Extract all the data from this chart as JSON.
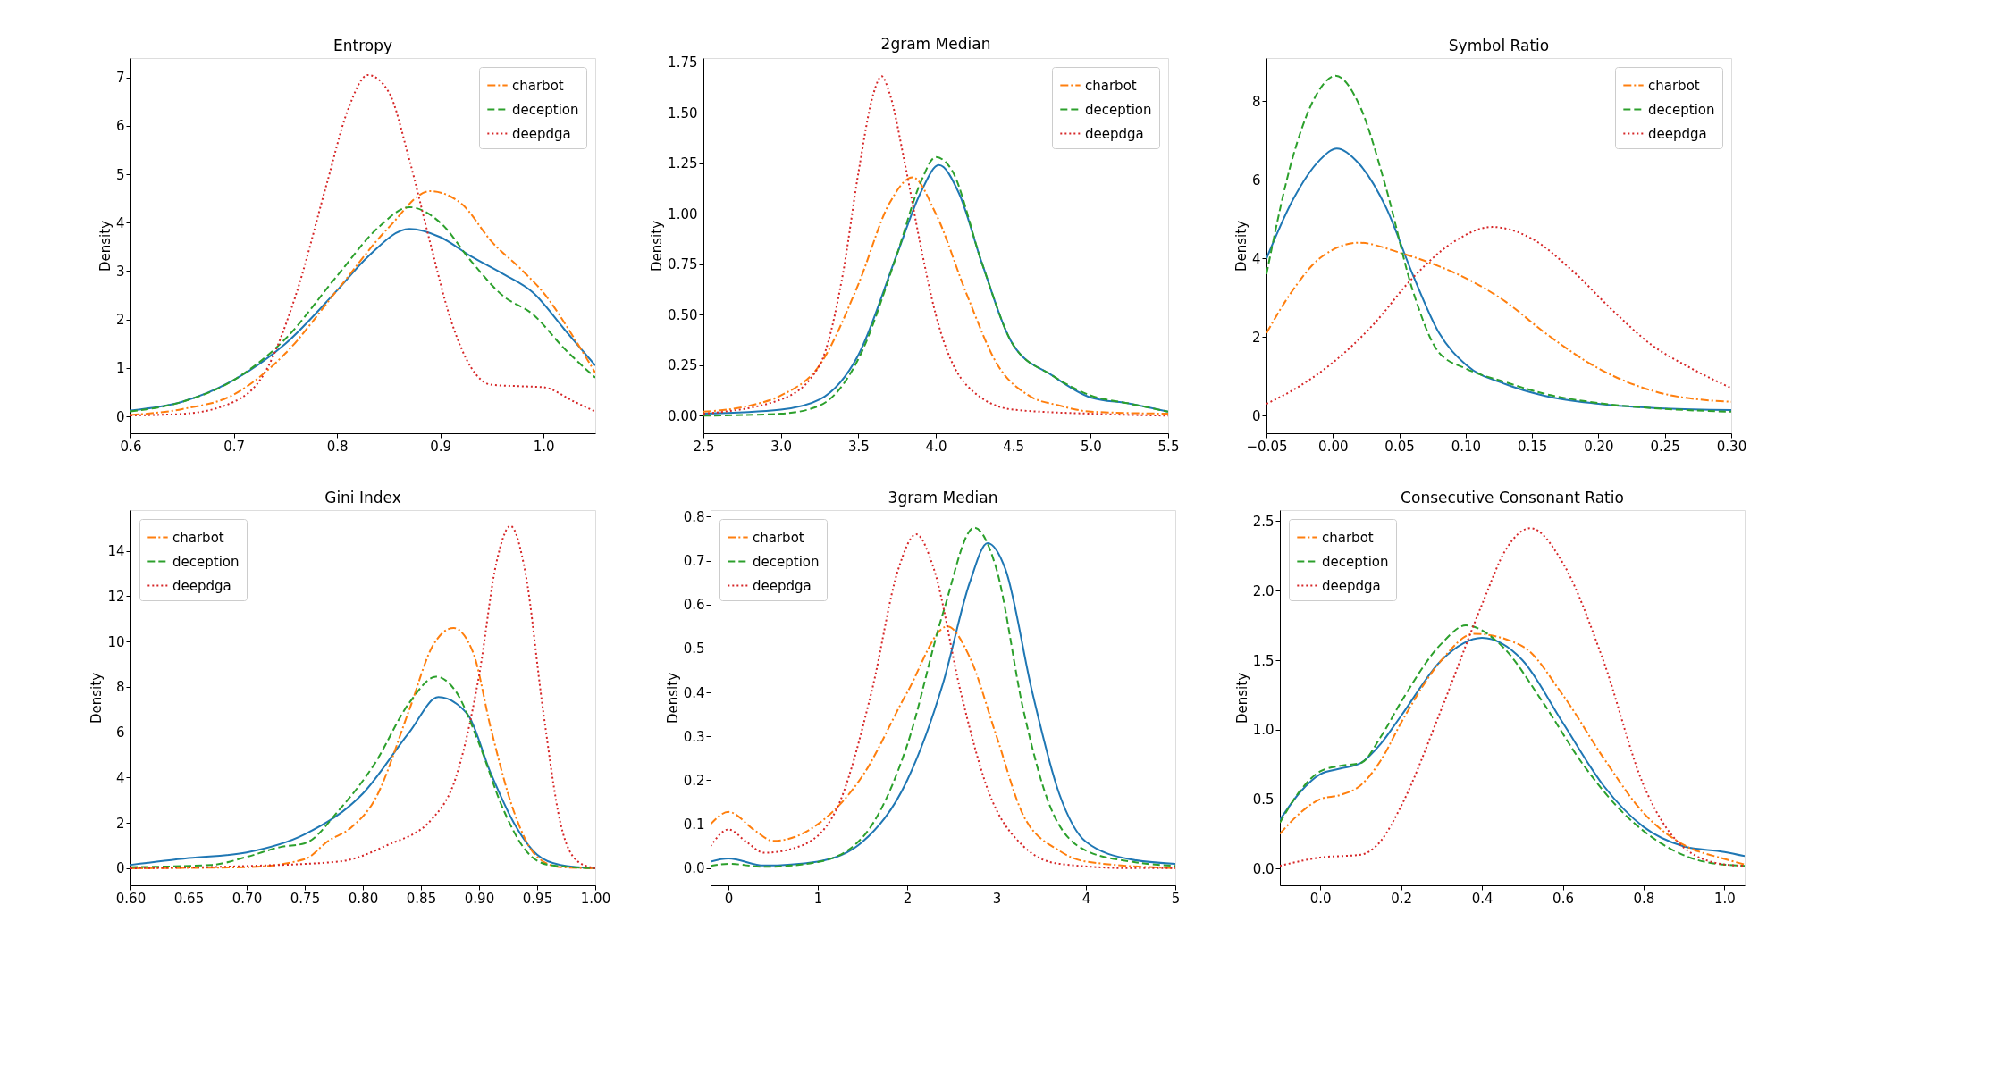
{
  "chart_data": [
    {
      "type": "line",
      "title": "Entropy",
      "ylabel": "Density",
      "legend": "top right",
      "grid": false,
      "xlim": [
        0.6,
        1.05
      ],
      "ylim": [
        -0.35,
        7.4
      ],
      "xticks": [
        0.6,
        0.7,
        0.8,
        0.9,
        {
          "value": 1,
          "label": "1.0"
        }
      ],
      "yticks": [
        0,
        1,
        2,
        3,
        4,
        5,
        6,
        7
      ],
      "series": [
        {
          "color": "#1f77b4",
          "line_style": "solid",
          "x": [
            0.6,
            0.65,
            0.7,
            0.75,
            0.8,
            0.83,
            0.87,
            0.9,
            0.93,
            0.96,
            0.99,
            1.02,
            1.05
          ],
          "values": [
            0.12,
            0.3,
            0.75,
            1.5,
            2.6,
            3.3,
            3.87,
            3.7,
            3.3,
            2.95,
            2.55,
            1.8,
            1.05
          ]
        },
        {
          "name": "charbot",
          "color": "#ff7f0e",
          "line_style": "dashdot",
          "x": [
            0.6,
            0.65,
            0.7,
            0.75,
            0.8,
            0.85,
            0.89,
            0.92,
            0.95,
            0.98,
            1.0,
            1.03,
            1.05
          ],
          "values": [
            0.03,
            0.15,
            0.45,
            1.3,
            2.6,
            3.9,
            4.65,
            4.4,
            3.6,
            3.0,
            2.55,
            1.6,
            0.9
          ]
        },
        {
          "name": "deception",
          "color": "#2ca02c",
          "line_style": "dashed",
          "x": [
            0.6,
            0.65,
            0.7,
            0.75,
            0.8,
            0.84,
            0.87,
            0.9,
            0.93,
            0.96,
            0.99,
            1.02,
            1.05
          ],
          "values": [
            0.1,
            0.3,
            0.75,
            1.6,
            2.9,
            3.9,
            4.32,
            4.0,
            3.2,
            2.5,
            2.1,
            1.4,
            0.8
          ]
        },
        {
          "name": "deepdga",
          "color": "#d62728",
          "line_style": "dotted",
          "x": [
            0.6,
            0.65,
            0.7,
            0.73,
            0.76,
            0.79,
            0.81,
            0.83,
            0.85,
            0.87,
            0.89,
            0.91,
            0.93,
            0.95,
            0.98,
            1.0,
            1.03,
            1.05
          ],
          "values": [
            0.02,
            0.05,
            0.3,
            0.9,
            2.5,
            4.8,
            6.3,
            7.05,
            6.7,
            5.3,
            3.6,
            2.0,
            1.0,
            0.65,
            0.62,
            0.6,
            0.3,
            0.1
          ]
        }
      ]
    },
    {
      "type": "line",
      "title": "2gram Median",
      "ylabel": "Density",
      "legend": "top right",
      "grid": false,
      "xlim": [
        2.5,
        5.5
      ],
      "ylim": [
        -0.087,
        1.77
      ],
      "xticks": [
        2.5,
        {
          "value": 3,
          "label": "3.0"
        },
        3.5,
        {
          "value": 4,
          "label": "4.0"
        },
        4.5,
        {
          "value": 5,
          "label": "5.0"
        },
        5.5
      ],
      "yticks": [
        {
          "value": 0,
          "label": "0.00"
        },
        0.25,
        {
          "value": 0.5,
          "label": "0.50"
        },
        0.75,
        {
          "value": 1,
          "label": "1.00"
        },
        1.25,
        {
          "value": 1.5,
          "label": "1.50"
        },
        1.75
      ],
      "series": [
        {
          "color": "#1f77b4",
          "line_style": "solid",
          "x": [
            2.5,
            3.0,
            3.25,
            3.5,
            3.75,
            3.9,
            4.02,
            4.15,
            4.3,
            4.5,
            4.75,
            5.0,
            5.25,
            5.5
          ],
          "values": [
            0.01,
            0.03,
            0.08,
            0.3,
            0.8,
            1.1,
            1.24,
            1.1,
            0.75,
            0.35,
            0.2,
            0.09,
            0.06,
            0.02
          ]
        },
        {
          "name": "charbot",
          "color": "#ff7f0e",
          "line_style": "dashdot",
          "x": [
            2.5,
            2.8,
            3.0,
            3.25,
            3.5,
            3.7,
            3.85,
            4.0,
            4.2,
            4.4,
            4.6,
            4.8,
            5.0,
            5.5
          ],
          "values": [
            0.02,
            0.05,
            0.1,
            0.25,
            0.65,
            1.05,
            1.18,
            1.0,
            0.6,
            0.25,
            0.1,
            0.05,
            0.02,
            0.01
          ]
        },
        {
          "name": "deception",
          "color": "#2ca02c",
          "line_style": "dashed",
          "x": [
            2.5,
            3.0,
            3.25,
            3.5,
            3.75,
            3.9,
            4.0,
            4.1,
            4.3,
            4.5,
            4.75,
            5.0,
            5.25,
            5.5
          ],
          "values": [
            0.0,
            0.01,
            0.05,
            0.28,
            0.8,
            1.15,
            1.28,
            1.22,
            0.75,
            0.35,
            0.2,
            0.1,
            0.06,
            0.02
          ]
        },
        {
          "name": "deepdga",
          "color": "#d62728",
          "line_style": "dotted",
          "x": [
            2.5,
            3.0,
            3.25,
            3.4,
            3.5,
            3.6,
            3.65,
            3.7,
            3.8,
            3.9,
            4.0,
            4.2,
            4.5,
            5.0,
            5.5
          ],
          "values": [
            0.01,
            0.08,
            0.25,
            0.7,
            1.2,
            1.6,
            1.68,
            1.6,
            1.25,
            0.85,
            0.5,
            0.15,
            0.03,
            0.01,
            0.0
          ]
        }
      ]
    },
    {
      "type": "line",
      "title": "Symbol Ratio",
      "ylabel": "Density",
      "legend": "top right",
      "grid": false,
      "xlim": [
        -0.05,
        0.3
      ],
      "ylim": [
        -0.45,
        9.1
      ],
      "xticks": [
        {
          "value": -0.05,
          "label": "−0.05"
        },
        {
          "value": 0,
          "label": "0.00"
        },
        0.05,
        {
          "value": 0.1,
          "label": "0.10"
        },
        0.15,
        {
          "value": 0.2,
          "label": "0.20"
        },
        0.25,
        {
          "value": 0.3,
          "label": "0.30"
        }
      ],
      "yticks": [
        0,
        2,
        4,
        6,
        8
      ],
      "series": [
        {
          "color": "#1f77b4",
          "line_style": "solid",
          "x": [
            -0.05,
            -0.03,
            -0.01,
            0.003,
            0.02,
            0.04,
            0.06,
            0.08,
            0.1,
            0.13,
            0.16,
            0.2,
            0.25,
            0.3
          ],
          "values": [
            4.0,
            5.5,
            6.5,
            6.8,
            6.4,
            5.3,
            3.6,
            2.1,
            1.3,
            0.8,
            0.5,
            0.3,
            0.18,
            0.14
          ]
        },
        {
          "name": "charbot",
          "color": "#ff7f0e",
          "line_style": "dashdot",
          "x": [
            -0.05,
            -0.03,
            -0.01,
            0.02,
            0.05,
            0.08,
            0.1,
            0.13,
            0.16,
            0.2,
            0.25,
            0.3
          ],
          "values": [
            2.1,
            3.2,
            4.0,
            4.4,
            4.15,
            3.8,
            3.5,
            2.9,
            2.1,
            1.2,
            0.55,
            0.35
          ]
        },
        {
          "name": "deception",
          "color": "#2ca02c",
          "line_style": "dashed",
          "x": [
            -0.05,
            -0.03,
            -0.01,
            0.002,
            0.02,
            0.04,
            0.06,
            0.08,
            0.1,
            0.13,
            0.16,
            0.2,
            0.25,
            0.3
          ],
          "values": [
            3.6,
            6.6,
            8.3,
            8.65,
            7.9,
            5.8,
            3.2,
            1.6,
            1.2,
            0.85,
            0.55,
            0.32,
            0.17,
            0.1
          ]
        },
        {
          "name": "deepdga",
          "color": "#d62728",
          "line_style": "dotted",
          "x": [
            -0.05,
            -0.03,
            0.0,
            0.03,
            0.06,
            0.09,
            0.12,
            0.15,
            0.18,
            0.21,
            0.24,
            0.27,
            0.3
          ],
          "values": [
            0.3,
            0.65,
            1.35,
            2.3,
            3.5,
            4.4,
            4.8,
            4.5,
            3.7,
            2.7,
            1.8,
            1.2,
            0.7
          ]
        }
      ]
    },
    {
      "type": "line",
      "title": "Gini Index",
      "ylabel": "Density",
      "legend": "top left",
      "grid": false,
      "xlim": [
        0.6,
        1.0
      ],
      "ylim": [
        -0.75,
        15.8
      ],
      "xticks": [
        {
          "value": 0.6,
          "label": "0.60"
        },
        0.65,
        {
          "value": 0.7,
          "label": "0.70"
        },
        0.75,
        {
          "value": 0.8,
          "label": "0.80"
        },
        0.85,
        {
          "value": 0.9,
          "label": "0.90"
        },
        0.95,
        {
          "value": 1,
          "label": "1.00"
        }
      ],
      "yticks": [
        0,
        2,
        4,
        6,
        8,
        10,
        12,
        14
      ],
      "series": [
        {
          "color": "#1f77b4",
          "line_style": "solid",
          "x": [
            0.6,
            0.65,
            0.7,
            0.75,
            0.8,
            0.84,
            0.865,
            0.89,
            0.91,
            0.93,
            0.95,
            0.97,
            1.0
          ],
          "values": [
            0.15,
            0.45,
            0.7,
            1.5,
            3.3,
            6.0,
            7.55,
            6.8,
            4.2,
            2.0,
            0.6,
            0.15,
            0.0
          ]
        },
        {
          "name": "charbot",
          "color": "#ff7f0e",
          "line_style": "dashdot",
          "x": [
            0.6,
            0.7,
            0.75,
            0.77,
            0.79,
            0.81,
            0.84,
            0.86,
            0.878,
            0.895,
            0.91,
            0.93,
            0.95,
            0.97,
            1.0
          ],
          "values": [
            0.0,
            0.05,
            0.4,
            1.2,
            1.8,
            3.0,
            7.0,
            9.8,
            10.6,
            9.5,
            6.2,
            2.5,
            0.5,
            0.05,
            0.0
          ]
        },
        {
          "name": "deception",
          "color": "#2ca02c",
          "line_style": "dashed",
          "x": [
            0.6,
            0.67,
            0.7,
            0.73,
            0.75,
            0.78,
            0.81,
            0.84,
            0.863,
            0.88,
            0.9,
            0.92,
            0.94,
            0.96,
            1.0
          ],
          "values": [
            0.05,
            0.15,
            0.5,
            0.95,
            1.1,
            2.6,
            4.6,
            7.3,
            8.45,
            7.8,
            5.5,
            2.7,
            0.8,
            0.15,
            0.0
          ]
        },
        {
          "name": "deepdga",
          "color": "#d62728",
          "line_style": "dotted",
          "x": [
            0.6,
            0.7,
            0.78,
            0.82,
            0.86,
            0.88,
            0.9,
            0.915,
            0.927,
            0.94,
            0.955,
            0.97,
            0.985,
            1.0
          ],
          "values": [
            0.0,
            0.1,
            0.3,
            1.0,
            2.2,
            4.0,
            8.5,
            13.5,
            15.1,
            13.0,
            7.0,
            2.0,
            0.3,
            0.0
          ]
        }
      ]
    },
    {
      "type": "line",
      "title": "3gram Median",
      "ylabel": "Density",
      "legend": "top left",
      "grid": false,
      "xlim": [
        -0.2,
        5
      ],
      "ylim": [
        -0.039,
        0.815
      ],
      "xticks": [
        0,
        1,
        2,
        3,
        4,
        5
      ],
      "yticks": [
        {
          "value": 0,
          "label": "0.0"
        },
        0.1,
        0.2,
        0.3,
        0.4,
        0.5,
        0.6,
        0.7,
        0.8
      ],
      "series": [
        {
          "color": "#1f77b4",
          "line_style": "solid",
          "x": [
            -0.2,
            0.0,
            0.4,
            1.0,
            1.5,
            2.0,
            2.4,
            2.7,
            2.9,
            3.1,
            3.4,
            3.7,
            4.0,
            4.5,
            5.0
          ],
          "values": [
            0.015,
            0.022,
            0.006,
            0.015,
            0.06,
            0.2,
            0.42,
            0.65,
            0.74,
            0.68,
            0.4,
            0.17,
            0.06,
            0.02,
            0.01
          ]
        },
        {
          "name": "charbot",
          "color": "#ff7f0e",
          "line_style": "dashdot",
          "x": [
            -0.2,
            0.0,
            0.3,
            0.5,
            1.0,
            1.5,
            2.0,
            2.45,
            2.7,
            3.0,
            3.3,
            3.7,
            4.0,
            5.0
          ],
          "values": [
            0.1,
            0.128,
            0.085,
            0.062,
            0.1,
            0.21,
            0.4,
            0.55,
            0.48,
            0.3,
            0.12,
            0.04,
            0.015,
            0.0
          ]
        },
        {
          "name": "deception",
          "color": "#2ca02c",
          "line_style": "dashed",
          "x": [
            -0.2,
            0.0,
            0.4,
            1.0,
            1.5,
            2.0,
            2.4,
            2.75,
            3.0,
            3.3,
            3.6,
            4.0,
            4.5,
            5.0
          ],
          "values": [
            0.005,
            0.01,
            0.003,
            0.014,
            0.07,
            0.28,
            0.58,
            0.775,
            0.68,
            0.36,
            0.14,
            0.04,
            0.015,
            0.005
          ]
        },
        {
          "name": "deepdga",
          "color": "#d62728",
          "line_style": "dotted",
          "x": [
            -0.2,
            0.0,
            0.2,
            0.4,
            0.8,
            1.2,
            1.6,
            1.9,
            2.1,
            2.3,
            2.6,
            2.9,
            3.3,
            3.7,
            4.5,
            5.0
          ],
          "values": [
            0.05,
            0.088,
            0.06,
            0.035,
            0.05,
            0.13,
            0.4,
            0.68,
            0.76,
            0.68,
            0.4,
            0.18,
            0.05,
            0.01,
            0.0,
            0.0
          ]
        }
      ]
    },
    {
      "type": "line",
      "title": "Consecutive Consonant Ratio",
      "ylabel": "Density",
      "legend": "top left",
      "grid": false,
      "xlim": [
        -0.1,
        1.05
      ],
      "ylim": [
        -0.12,
        2.58
      ],
      "xticks": [
        {
          "value": 0,
          "label": "0.0"
        },
        0.2,
        0.4,
        0.6,
        0.8,
        {
          "value": 1,
          "label": "1.0"
        }
      ],
      "yticks": [
        {
          "value": 0,
          "label": "0.0"
        },
        0.5,
        {
          "value": 1,
          "label": "1.0"
        },
        1.5,
        {
          "value": 2,
          "label": "2.0"
        },
        2.5
      ],
      "series": [
        {
          "color": "#1f77b4",
          "line_style": "solid",
          "x": [
            -0.1,
            -0.05,
            0.0,
            0.05,
            0.1,
            0.15,
            0.2,
            0.3,
            0.4,
            0.5,
            0.6,
            0.7,
            0.8,
            0.9,
            1.0,
            1.05
          ],
          "values": [
            0.35,
            0.55,
            0.68,
            0.72,
            0.76,
            0.9,
            1.1,
            1.5,
            1.66,
            1.5,
            1.05,
            0.6,
            0.3,
            0.16,
            0.12,
            0.09
          ]
        },
        {
          "name": "charbot",
          "color": "#ff7f0e",
          "line_style": "dashdot",
          "x": [
            -0.1,
            -0.05,
            0.0,
            0.05,
            0.1,
            0.15,
            0.2,
            0.3,
            0.38,
            0.5,
            0.6,
            0.7,
            0.8,
            0.9,
            1.0,
            1.05
          ],
          "values": [
            0.25,
            0.4,
            0.5,
            0.53,
            0.6,
            0.78,
            1.05,
            1.5,
            1.69,
            1.6,
            1.25,
            0.8,
            0.4,
            0.17,
            0.07,
            0.03
          ]
        },
        {
          "name": "deception",
          "color": "#2ca02c",
          "line_style": "dashed",
          "x": [
            -0.1,
            -0.05,
            0.0,
            0.05,
            0.1,
            0.15,
            0.2,
            0.3,
            0.36,
            0.45,
            0.55,
            0.65,
            0.75,
            0.85,
            0.95,
            1.05
          ],
          "values": [
            0.33,
            0.56,
            0.7,
            0.74,
            0.76,
            0.95,
            1.2,
            1.62,
            1.75,
            1.6,
            1.2,
            0.75,
            0.4,
            0.17,
            0.05,
            0.02
          ]
        },
        {
          "name": "deepdga",
          "color": "#d62728",
          "line_style": "dotted",
          "x": [
            -0.1,
            0.0,
            0.1,
            0.15,
            0.2,
            0.3,
            0.4,
            0.46,
            0.52,
            0.6,
            0.7,
            0.8,
            0.9,
            1.0,
            1.05
          ],
          "values": [
            0.02,
            0.08,
            0.1,
            0.2,
            0.45,
            1.15,
            1.9,
            2.3,
            2.45,
            2.2,
            1.5,
            0.6,
            0.15,
            0.03,
            0.02
          ]
        }
      ]
    }
  ]
}
